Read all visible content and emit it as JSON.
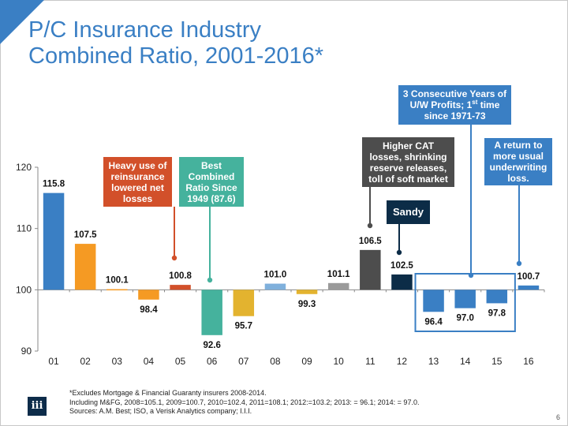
{
  "slide": {
    "title_line1": "P/C Insurance Industry",
    "title_line2": "Combined Ratio, 2001-2016*",
    "page_number": "6",
    "logo_text": "iii",
    "brand_color": "#3a7fc4"
  },
  "footnotes": [
    "*Excludes Mortgage & Financial Guaranty insurers 2008-2014.",
    "Including M&FG, 2008=105.1, 2009=100.7, 2010=102.4, 2011=108.1; 2012:=103.2; 2013: = 96.1; 2014: = 97.0.",
    "Sources: A.M. Best; ISO, a Verisk Analytics company; I.I.I."
  ],
  "annotations": {
    "reinsurance": {
      "lines": [
        "Heavy use of",
        "reinsurance",
        "lowered net",
        "losses"
      ],
      "color": "#d2502a"
    },
    "best": {
      "lines": [
        "Best",
        "Combined",
        "Ratio Since",
        "1949 (87.6)"
      ],
      "color": "#45b29d"
    },
    "cat": {
      "lines": [
        "Higher CAT",
        "losses, shrinking",
        "reserve releases,",
        "toll of soft market"
      ],
      "color": "#4d4d4d"
    },
    "sandy": {
      "lines": [
        "Sandy"
      ],
      "color": "#0c2c47"
    },
    "profits": {
      "line1": "3 Consecutive Years of",
      "line2_a": "U/W Profits; 1",
      "line2_sup": "st",
      "line2_b": " time",
      "line3": "since 1971-73",
      "color": "#3a7fc4"
    },
    "return": {
      "lines": [
        "A return to",
        "more usual",
        "underwriting",
        "loss."
      ],
      "color": "#3a7fc4"
    }
  },
  "chart_data": {
    "type": "bar",
    "title": "P/C Insurance Industry Combined Ratio, 2001-2016*",
    "xlabel": "",
    "ylabel": "",
    "baseline": 100,
    "ylim": [
      90,
      120
    ],
    "yticks": [
      90,
      100,
      110,
      120
    ],
    "grid": false,
    "legend": "none",
    "categories": [
      "01",
      "02",
      "03",
      "04",
      "05",
      "06",
      "07",
      "08",
      "09",
      "10",
      "11",
      "12",
      "13",
      "14",
      "15",
      "16"
    ],
    "values": [
      115.8,
      107.5,
      100.1,
      98.4,
      100.8,
      92.6,
      95.7,
      101.0,
      99.3,
      101.1,
      106.5,
      102.5,
      96.4,
      97.0,
      97.8,
      100.7
    ],
    "labels": [
      "115.8",
      "107.5",
      "100.1",
      "98.4",
      "100.8",
      "92.6",
      "95.7",
      "101.0",
      "99.3",
      "101.1",
      "106.5",
      "102.5",
      "96.4",
      "97.0",
      "97.8",
      "100.7"
    ],
    "colors": [
      "#3a7fc4",
      "#f59a23",
      "#f59a23",
      "#f59a23",
      "#d2502a",
      "#45b29d",
      "#e3b32f",
      "#7fb0dc",
      "#e3b32f",
      "#9a9a9a",
      "#4d4d4d",
      "#0c2c47",
      "#3a7fc4",
      "#3a7fc4",
      "#3a7fc4",
      "#3a7fc4"
    ],
    "highlight_box_categories": [
      "13",
      "14",
      "15"
    ]
  }
}
